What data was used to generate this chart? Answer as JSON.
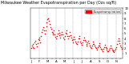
{
  "title": "Milwaukee Weather Evapotranspiration per Day (Ozs sq/ft)",
  "title_fontsize": 3.5,
  "background_color": "#ffffff",
  "plot_bg_color": "#ffffff",
  "dot_color": "#ff0000",
  "dot_size": 1.2,
  "ylim": [
    0,
    10
  ],
  "yticks": [
    1,
    2,
    3,
    4,
    5,
    6,
    7,
    8,
    9,
    10
  ],
  "ylabel_fontsize": 2.8,
  "xlabel_fontsize": 2.8,
  "legend_label": "Evapotranspiration",
  "legend_box_color": "#ff0000",
  "x_values": [
    1,
    2,
    3,
    4,
    5,
    6,
    7,
    8,
    9,
    10,
    11,
    12,
    13,
    14,
    15,
    16,
    17,
    18,
    19,
    20,
    21,
    22,
    23,
    24,
    25,
    26,
    27,
    28,
    29,
    30,
    31,
    32,
    33,
    34,
    35,
    36,
    37,
    38,
    39,
    40,
    41,
    42,
    43,
    44,
    45,
    46,
    47,
    48,
    49,
    50,
    51,
    52,
    53,
    54,
    55,
    56,
    57,
    58,
    59,
    60,
    61,
    62,
    63,
    64,
    65,
    66,
    67,
    68,
    69,
    70,
    71,
    72,
    73,
    74,
    75,
    76,
    77,
    78,
    79,
    80,
    81,
    82,
    83,
    84,
    85,
    86,
    87,
    88,
    89,
    90,
    91,
    92,
    93,
    94,
    95,
    96,
    97,
    98,
    99,
    100,
    101,
    102,
    103,
    104,
    105,
    106,
    107,
    108,
    109,
    110,
    111,
    112,
    113,
    114,
    115,
    116,
    117,
    118,
    119,
    120,
    121,
    122,
    123,
    124,
    125,
    126,
    127,
    128
  ],
  "y_values": [
    2.1,
    2.5,
    2.8,
    2.3,
    2.0,
    3.1,
    3.5,
    2.9,
    2.4,
    3.0,
    3.8,
    4.2,
    3.6,
    3.1,
    4.5,
    5.2,
    5.8,
    6.2,
    5.5,
    4.9,
    5.5,
    6.3,
    7.1,
    7.8,
    8.0,
    7.5,
    6.8,
    6.2,
    5.9,
    5.3,
    4.7,
    5.1,
    5.5,
    4.8,
    4.3,
    3.9,
    4.5,
    5.0,
    5.5,
    5.1,
    4.6,
    4.1,
    4.8,
    5.2,
    4.7,
    4.2,
    3.8,
    4.5,
    5.1,
    5.6,
    5.0,
    4.4,
    3.9,
    4.5,
    5.2,
    4.6,
    4.1,
    3.6,
    3.2,
    3.8,
    4.3,
    3.8,
    3.4,
    3.0,
    2.8,
    3.4,
    3.9,
    4.4,
    3.9,
    3.4,
    3.0,
    2.7,
    3.2,
    3.7,
    4.2,
    3.7,
    3.3,
    2.9,
    2.6,
    3.1,
    3.5,
    3.0,
    2.6,
    2.3,
    2.0,
    2.5,
    2.9,
    3.3,
    2.9,
    2.5,
    2.2,
    2.0,
    1.8,
    2.2,
    2.6,
    3.0,
    2.6,
    2.2,
    1.9,
    1.7,
    1.5,
    1.9,
    2.3,
    2.7,
    2.3,
    2.0,
    1.7,
    1.5,
    1.4,
    1.8,
    2.1,
    2.5,
    2.1,
    1.8,
    1.6,
    1.4,
    1.2,
    1.6,
    1.9,
    2.2,
    2.9,
    3.5,
    4.0,
    3.5,
    3.0,
    2.6,
    2.2,
    1.9
  ],
  "vline_positions": [
    12,
    24,
    36,
    48,
    60,
    72,
    84,
    96,
    108,
    120
  ],
  "xtick_positions": [
    1,
    6,
    12,
    18,
    24,
    30,
    36,
    42,
    48,
    54,
    60,
    66,
    72,
    78,
    84,
    90,
    96,
    102,
    108,
    114,
    120,
    126
  ],
  "xtick_labels": [
    "J",
    "",
    "F",
    "",
    "M",
    "",
    "A",
    "",
    "M",
    "",
    "J",
    "",
    "J",
    "",
    "A",
    "",
    "S",
    "",
    "O",
    "",
    "N",
    ""
  ],
  "grid_color": "#999999",
  "grid_linestyle": "--",
  "grid_linewidth": 0.3
}
